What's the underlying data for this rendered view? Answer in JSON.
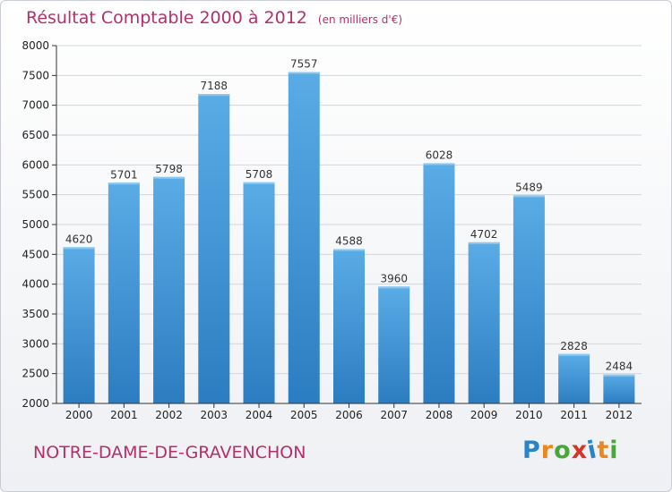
{
  "title": "Résultat Comptable 2000 à 2012",
  "unit_note": "(en milliers d'€)",
  "city": "NOTRE-DAME-DE-GRAVENCHON",
  "logo": {
    "text": "Proxiti",
    "letter_colors": [
      "#2a84c6",
      "#e8891f",
      "#4aa63a",
      "#d8352a",
      "#2a84c6",
      "#e8891f",
      "#4aa63a"
    ]
  },
  "colors": {
    "title": "#b4306b",
    "bar_top": "#5aace6",
    "bar_bottom": "#2b7dc1",
    "grid": "#d4d6da"
  },
  "chart_data": {
    "type": "bar",
    "title": "Résultat Comptable 2000 à 2012",
    "subtitle": "(en milliers d'€)",
    "xlabel": "",
    "ylabel": "",
    "categories": [
      "2000",
      "2001",
      "2002",
      "2003",
      "2004",
      "2005",
      "2006",
      "2007",
      "2008",
      "2009",
      "2010",
      "2011",
      "2012"
    ],
    "values": [
      4620,
      5701,
      5798,
      7188,
      5708,
      7557,
      4588,
      3960,
      6028,
      4702,
      5489,
      2828,
      2484
    ],
    "ylim": [
      2000,
      8000
    ],
    "yticks": [
      2000,
      2500,
      3000,
      3500,
      4000,
      4500,
      5000,
      5500,
      6000,
      6500,
      7000,
      7500,
      8000
    ],
    "grid": true,
    "legend": "none"
  }
}
